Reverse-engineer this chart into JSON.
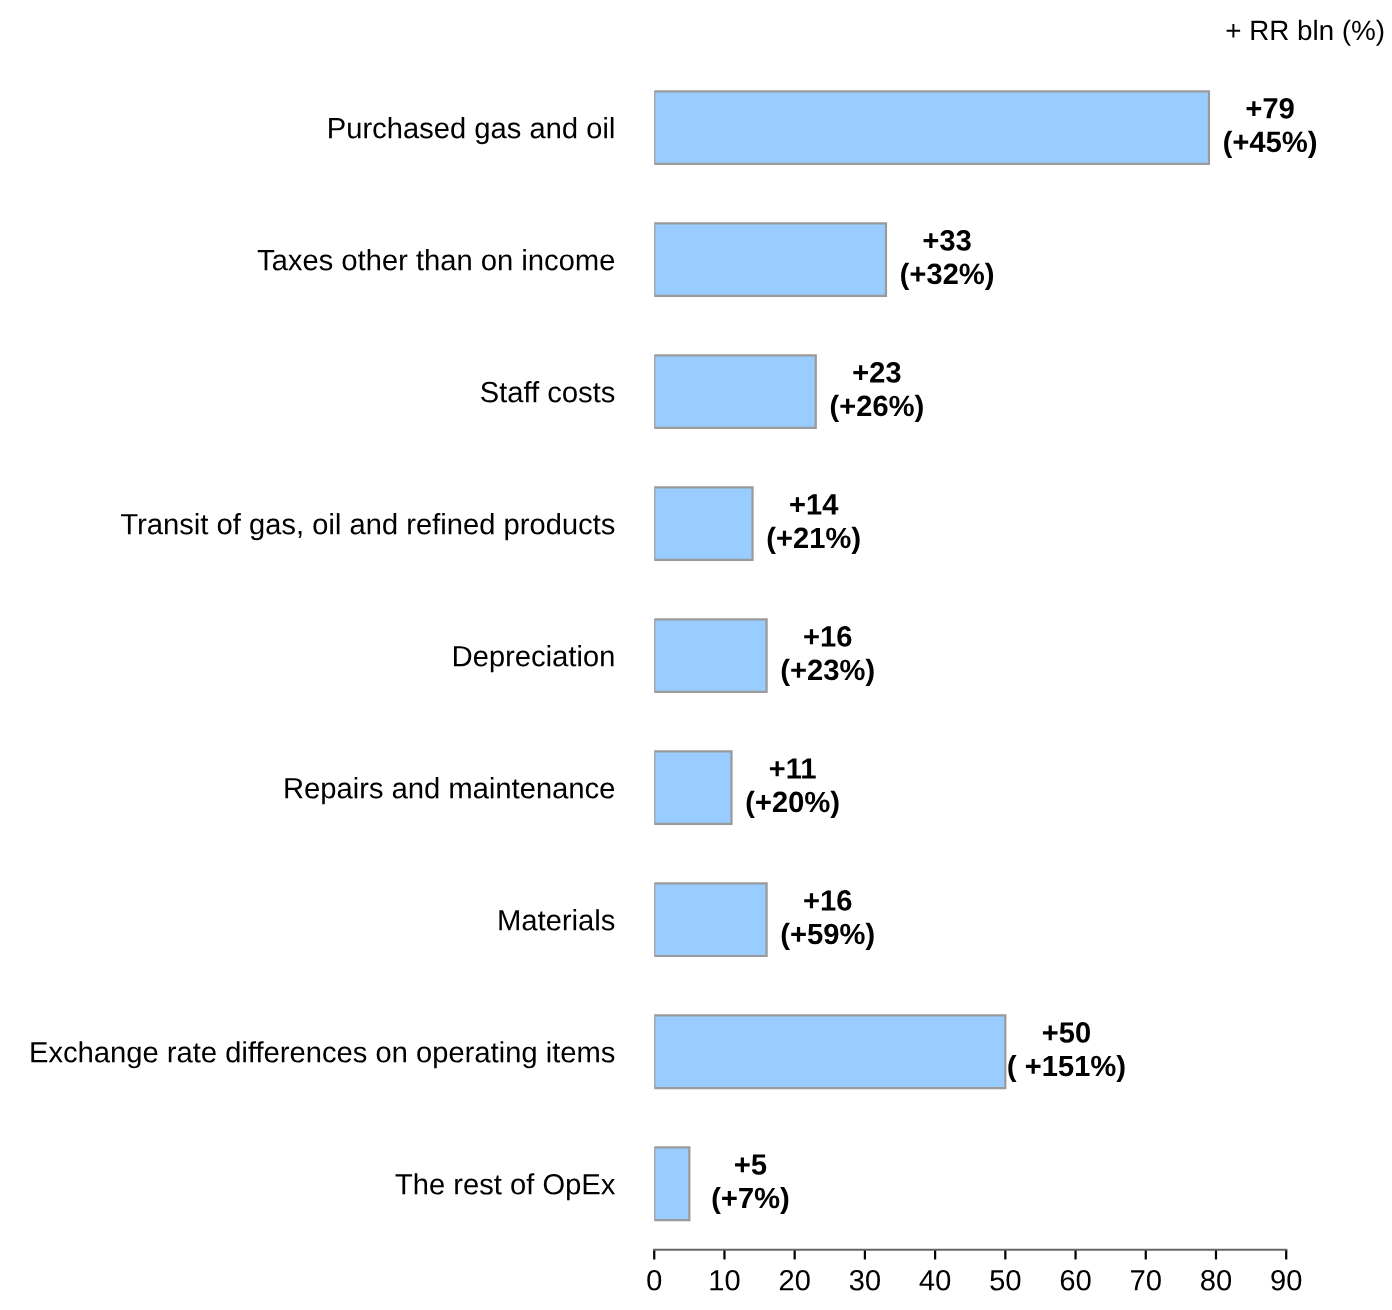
{
  "chart_data": {
    "type": "bar",
    "orientation": "horizontal",
    "categories": [
      "Purchased gas and oil",
      "Taxes other than on income",
      "Staff costs",
      "Transit of gas, oil and refined products",
      "Depreciation",
      "Repairs and maintenance",
      "Materials",
      "Exchange rate differences on operating items",
      "The rest of OpEx"
    ],
    "values": [
      79,
      33,
      23,
      14,
      16,
      11,
      16,
      50,
      5
    ],
    "value_labels": [
      "+79\n(+45%)",
      "+33\n(+32%)",
      "+23\n(+26%)",
      "+14\n(+21%)",
      "+16\n(+23%)",
      "+11\n(+20%)",
      "+16\n(+59%)",
      "+50\n( +151%)",
      "+5\n(+7%)"
    ],
    "color": "#99ccff",
    "xlim": [
      0,
      90
    ],
    "xticks": [
      0,
      10,
      20,
      30,
      40,
      50,
      60,
      70,
      80,
      90
    ],
    "annotations": [
      "+ RR bln (%)"
    ],
    "grid": false
  }
}
